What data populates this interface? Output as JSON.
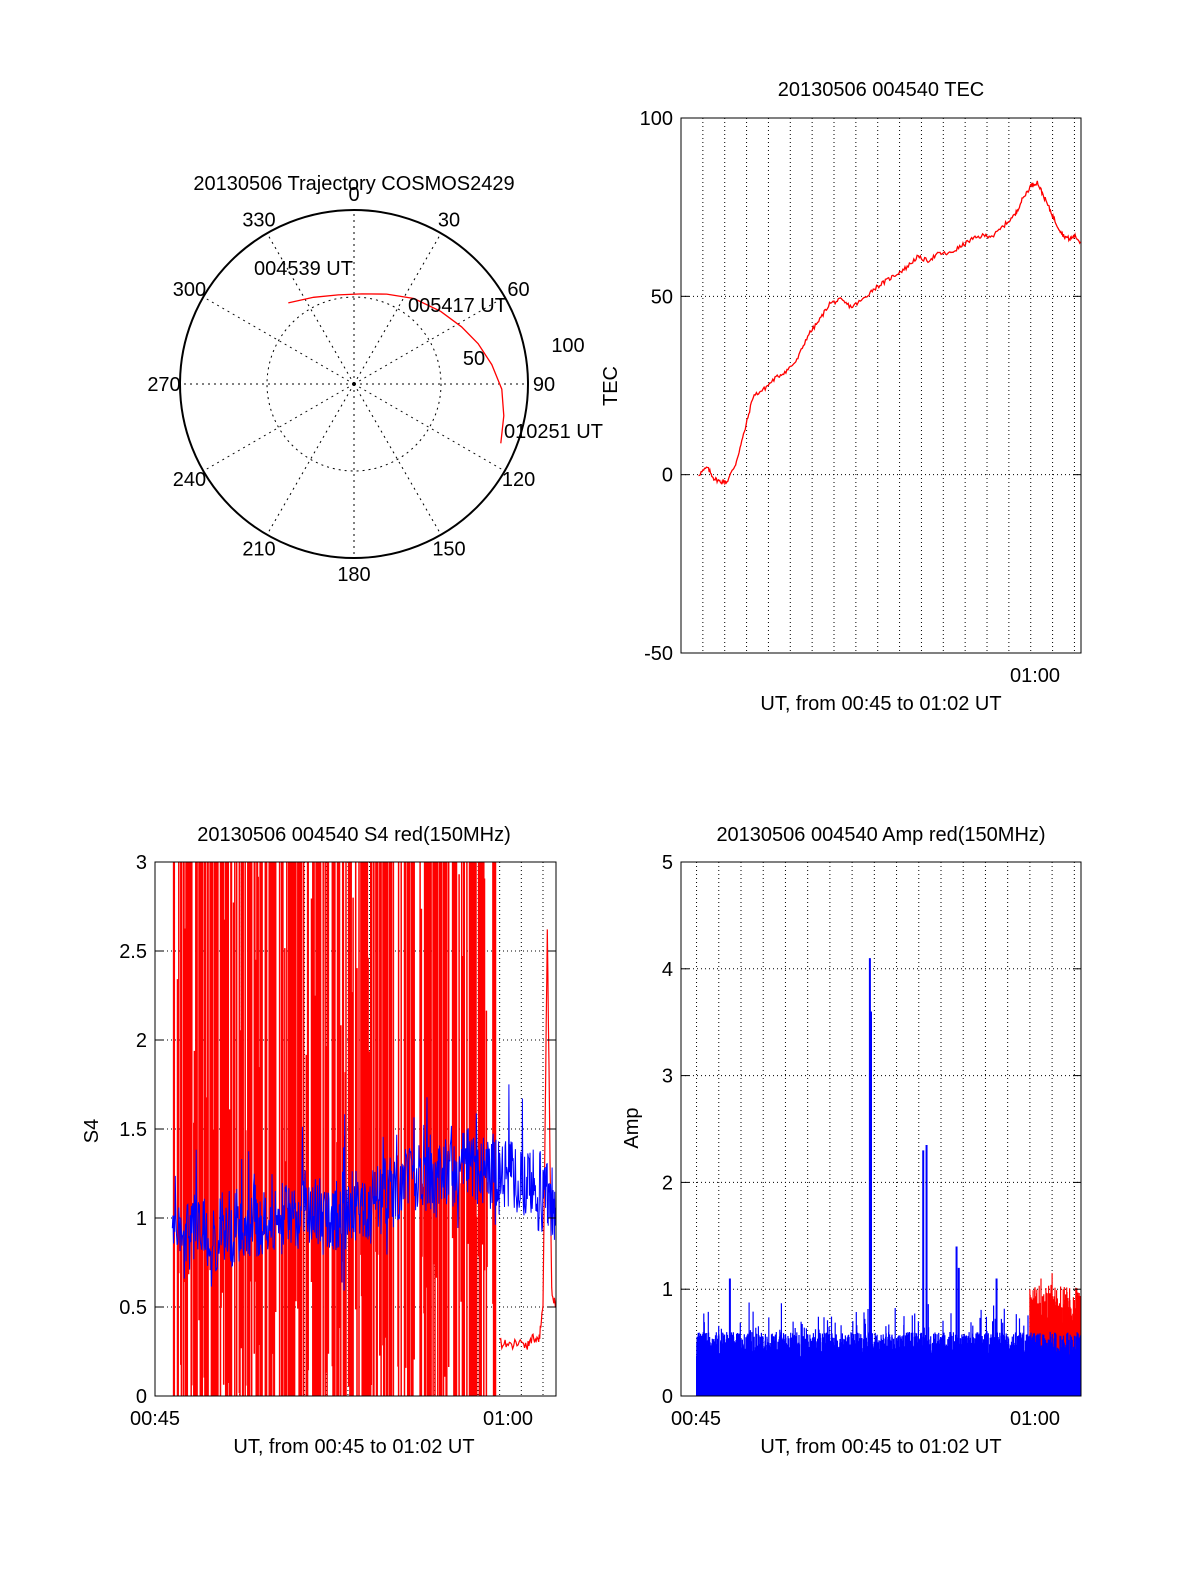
{
  "chart_data": [
    {
      "id": "trajectory",
      "type": "polar",
      "title": "20130506 Trajectory COSMOS2429",
      "azimuth_labels": [
        "0",
        "30",
        "60",
        "90",
        "120",
        "150",
        "180",
        "210",
        "240",
        "270",
        "300",
        "330"
      ],
      "radial_labels": [
        "50",
        "100"
      ],
      "rlim": [
        0,
        100
      ],
      "grid": true,
      "series": [
        {
          "name": "trajectory",
          "color": "#ff0000",
          "points": [
            [
              321,
              60
            ],
            [
              335,
              55
            ],
            [
              350,
              52
            ],
            [
              5,
              52
            ],
            [
              20,
              55
            ],
            [
              35,
              60
            ],
            [
              50,
              65
            ],
            [
              62,
              70
            ],
            [
              72,
              75
            ],
            [
              82,
              80
            ],
            [
              92,
              85
            ],
            [
              102,
              88
            ],
            [
              112,
              91
            ]
          ]
        }
      ],
      "annotations": [
        {
          "text": "004539 UT",
          "az": 321,
          "r": 60
        },
        {
          "text": "005417 UT",
          "az": 50,
          "r": 65
        },
        {
          "text": "010251 UT",
          "az": 112,
          "r": 91
        }
      ]
    },
    {
      "id": "tec",
      "type": "line",
      "title": "20130506 004540 TEC",
      "xlabel": "UT, from 00:45 to 01:02 UT",
      "ylabel": "TEC",
      "xlim": [
        44,
        62.3
      ],
      "ylim": [
        -50,
        100
      ],
      "yticks": [
        "-50",
        "0",
        "50",
        "100"
      ],
      "xticks": [
        {
          "value": 60,
          "label": "01:00"
        }
      ],
      "grid": true,
      "series": [
        {
          "name": "TEC",
          "color": "#ff0000",
          "x": [
            44.8,
            45.2,
            45.5,
            45.8,
            46.1,
            46.5,
            46.9,
            47.3,
            47.8,
            48.3,
            48.8,
            49.3,
            49.8,
            50.3,
            50.8,
            51.3,
            51.8,
            52.3,
            52.8,
            53.3,
            53.8,
            54.3,
            54.8,
            55.3,
            55.8,
            56.3,
            56.8,
            57.3,
            57.8,
            58.3,
            58.8,
            59.3,
            59.6,
            60.0,
            60.3,
            60.6,
            60.9,
            61.2,
            61.5,
            61.8,
            62.0,
            62.3
          ],
          "y": [
            0,
            2,
            -1,
            -2,
            -2,
            3,
            12,
            22,
            24,
            27,
            29,
            32,
            39,
            43,
            48,
            49,
            47,
            49,
            52,
            54,
            56,
            58,
            61,
            60,
            62,
            62,
            64,
            66,
            67,
            67,
            70,
            73,
            77,
            81,
            82,
            78,
            74,
            70,
            67,
            66,
            67,
            65
          ]
        }
      ]
    },
    {
      "id": "s4",
      "type": "line",
      "title": "20130506 004540 S4 red(150MHz)",
      "xlabel": "UT, from 00:45 to 01:02 UT",
      "ylabel": "S4",
      "xlim": [
        44.1,
        62.6
      ],
      "ylim": [
        0,
        3
      ],
      "yticks": [
        "0",
        "0.5",
        "1",
        "1.5",
        "2",
        "2.5",
        "3"
      ],
      "xticks": [
        {
          "value": 45,
          "label": "00:45"
        },
        {
          "value": 60,
          "label": "01:00"
        }
      ],
      "grid": true,
      "series": [
        {
          "name": "S4 red(150MHz)",
          "color": "#ff0000",
          "description_points": {
            "dense_span": [
              44.9,
              59.9
            ],
            "tail_x": [
              60.0,
              60.4,
              60.8,
              61.2,
              61.5,
              61.8,
              62.0,
              62.2,
              62.4,
              62.6
            ],
            "tail_y": [
              0.3,
              0.28,
              0.3,
              0.28,
              0.32,
              0.3,
              0.5,
              2.6,
              0.6,
              0.5
            ]
          }
        },
        {
          "name": "S4",
          "color": "#0000ff",
          "mean_path_x": [
            44.9,
            46,
            47,
            48,
            49,
            50,
            51,
            52,
            53,
            54,
            55,
            56,
            57,
            58,
            59,
            60,
            61,
            62,
            62.6
          ],
          "mean_path_y": [
            0.9,
            0.95,
            0.93,
            0.95,
            0.97,
            1.0,
            1.02,
            1.0,
            1.05,
            1.1,
            1.12,
            1.2,
            1.25,
            1.3,
            1.28,
            1.25,
            1.2,
            1.15,
            1.1
          ]
        }
      ]
    },
    {
      "id": "amp",
      "type": "bar",
      "title": "20130506 004540 Amp red(150MHz)",
      "xlabel": "UT, from 00:45 to 01:02 UT",
      "ylabel": "Amp",
      "xlim": [
        44.3,
        62.3
      ],
      "ylim": [
        0,
        5
      ],
      "yticks": [
        "0",
        "1",
        "2",
        "3",
        "4",
        "5"
      ],
      "xticks": [
        {
          "value": 45,
          "label": "00:45"
        },
        {
          "value": 60,
          "label": "01:00"
        }
      ],
      "grid": true,
      "series": [
        {
          "name": "Amp",
          "color": "#0000ff",
          "spikes": [
            [
              46.5,
              1.1
            ],
            [
              52.8,
              4.1
            ],
            [
              52.85,
              3.6
            ],
            [
              55.2,
              2.3
            ],
            [
              55.35,
              2.35
            ],
            [
              56.7,
              1.4
            ],
            [
              58.5,
              1.1
            ],
            [
              56.8,
              1.2
            ]
          ]
        },
        {
          "name": "Amp red(150MHz)",
          "color": "#ff0000",
          "spikes": [
            [
              60.0,
              1.0
            ],
            [
              60.5,
              1.1
            ],
            [
              61.0,
              1.15
            ],
            [
              61.5,
              1.0
            ],
            [
              61.8,
              0.9
            ]
          ]
        }
      ]
    }
  ]
}
